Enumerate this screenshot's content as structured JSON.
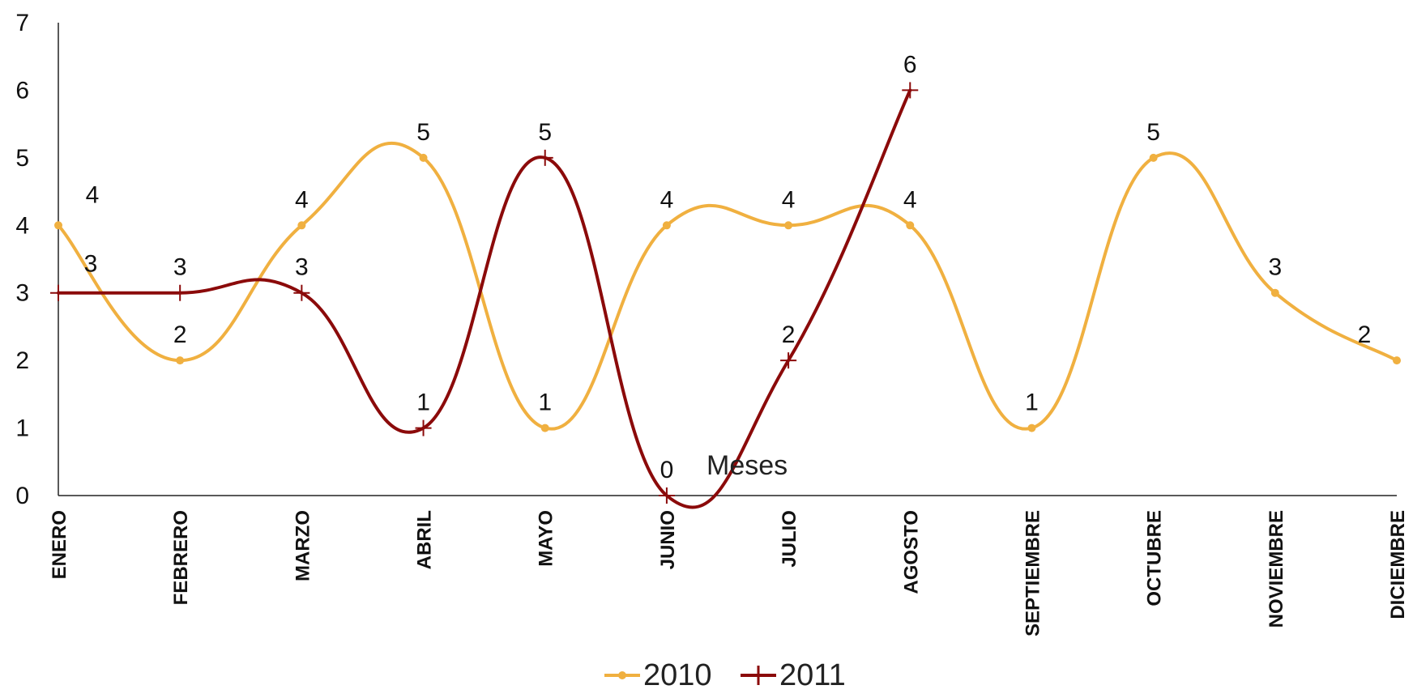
{
  "chart_data": {
    "type": "line",
    "categories": [
      "ENERO",
      "FEBRERO",
      "MARZO",
      "ABRIL",
      "MAYO",
      "JUNIO",
      "JULIO",
      "AGOSTO",
      "SEPTIEMBRE",
      "OCTUBRE",
      "NOVIEMBRE",
      "DICIEMBRE"
    ],
    "series": [
      {
        "name": "2010",
        "color": "#F0B040",
        "marker": "dot",
        "values": [
          4,
          2,
          4,
          5,
          1,
          4,
          4,
          4,
          1,
          5,
          3,
          2
        ]
      },
      {
        "name": "2011",
        "color": "#8B0A0A",
        "marker": "plus",
        "values": [
          3,
          3,
          3,
          1,
          5,
          0,
          2,
          6,
          null,
          null,
          null,
          null
        ]
      }
    ],
    "ylim": [
      0,
      7
    ],
    "yticks": [
      0,
      1,
      2,
      3,
      4,
      5,
      6,
      7
    ],
    "annotation": "Meses",
    "smooth": true,
    "legend_position": "bottom-center",
    "grid": false
  }
}
